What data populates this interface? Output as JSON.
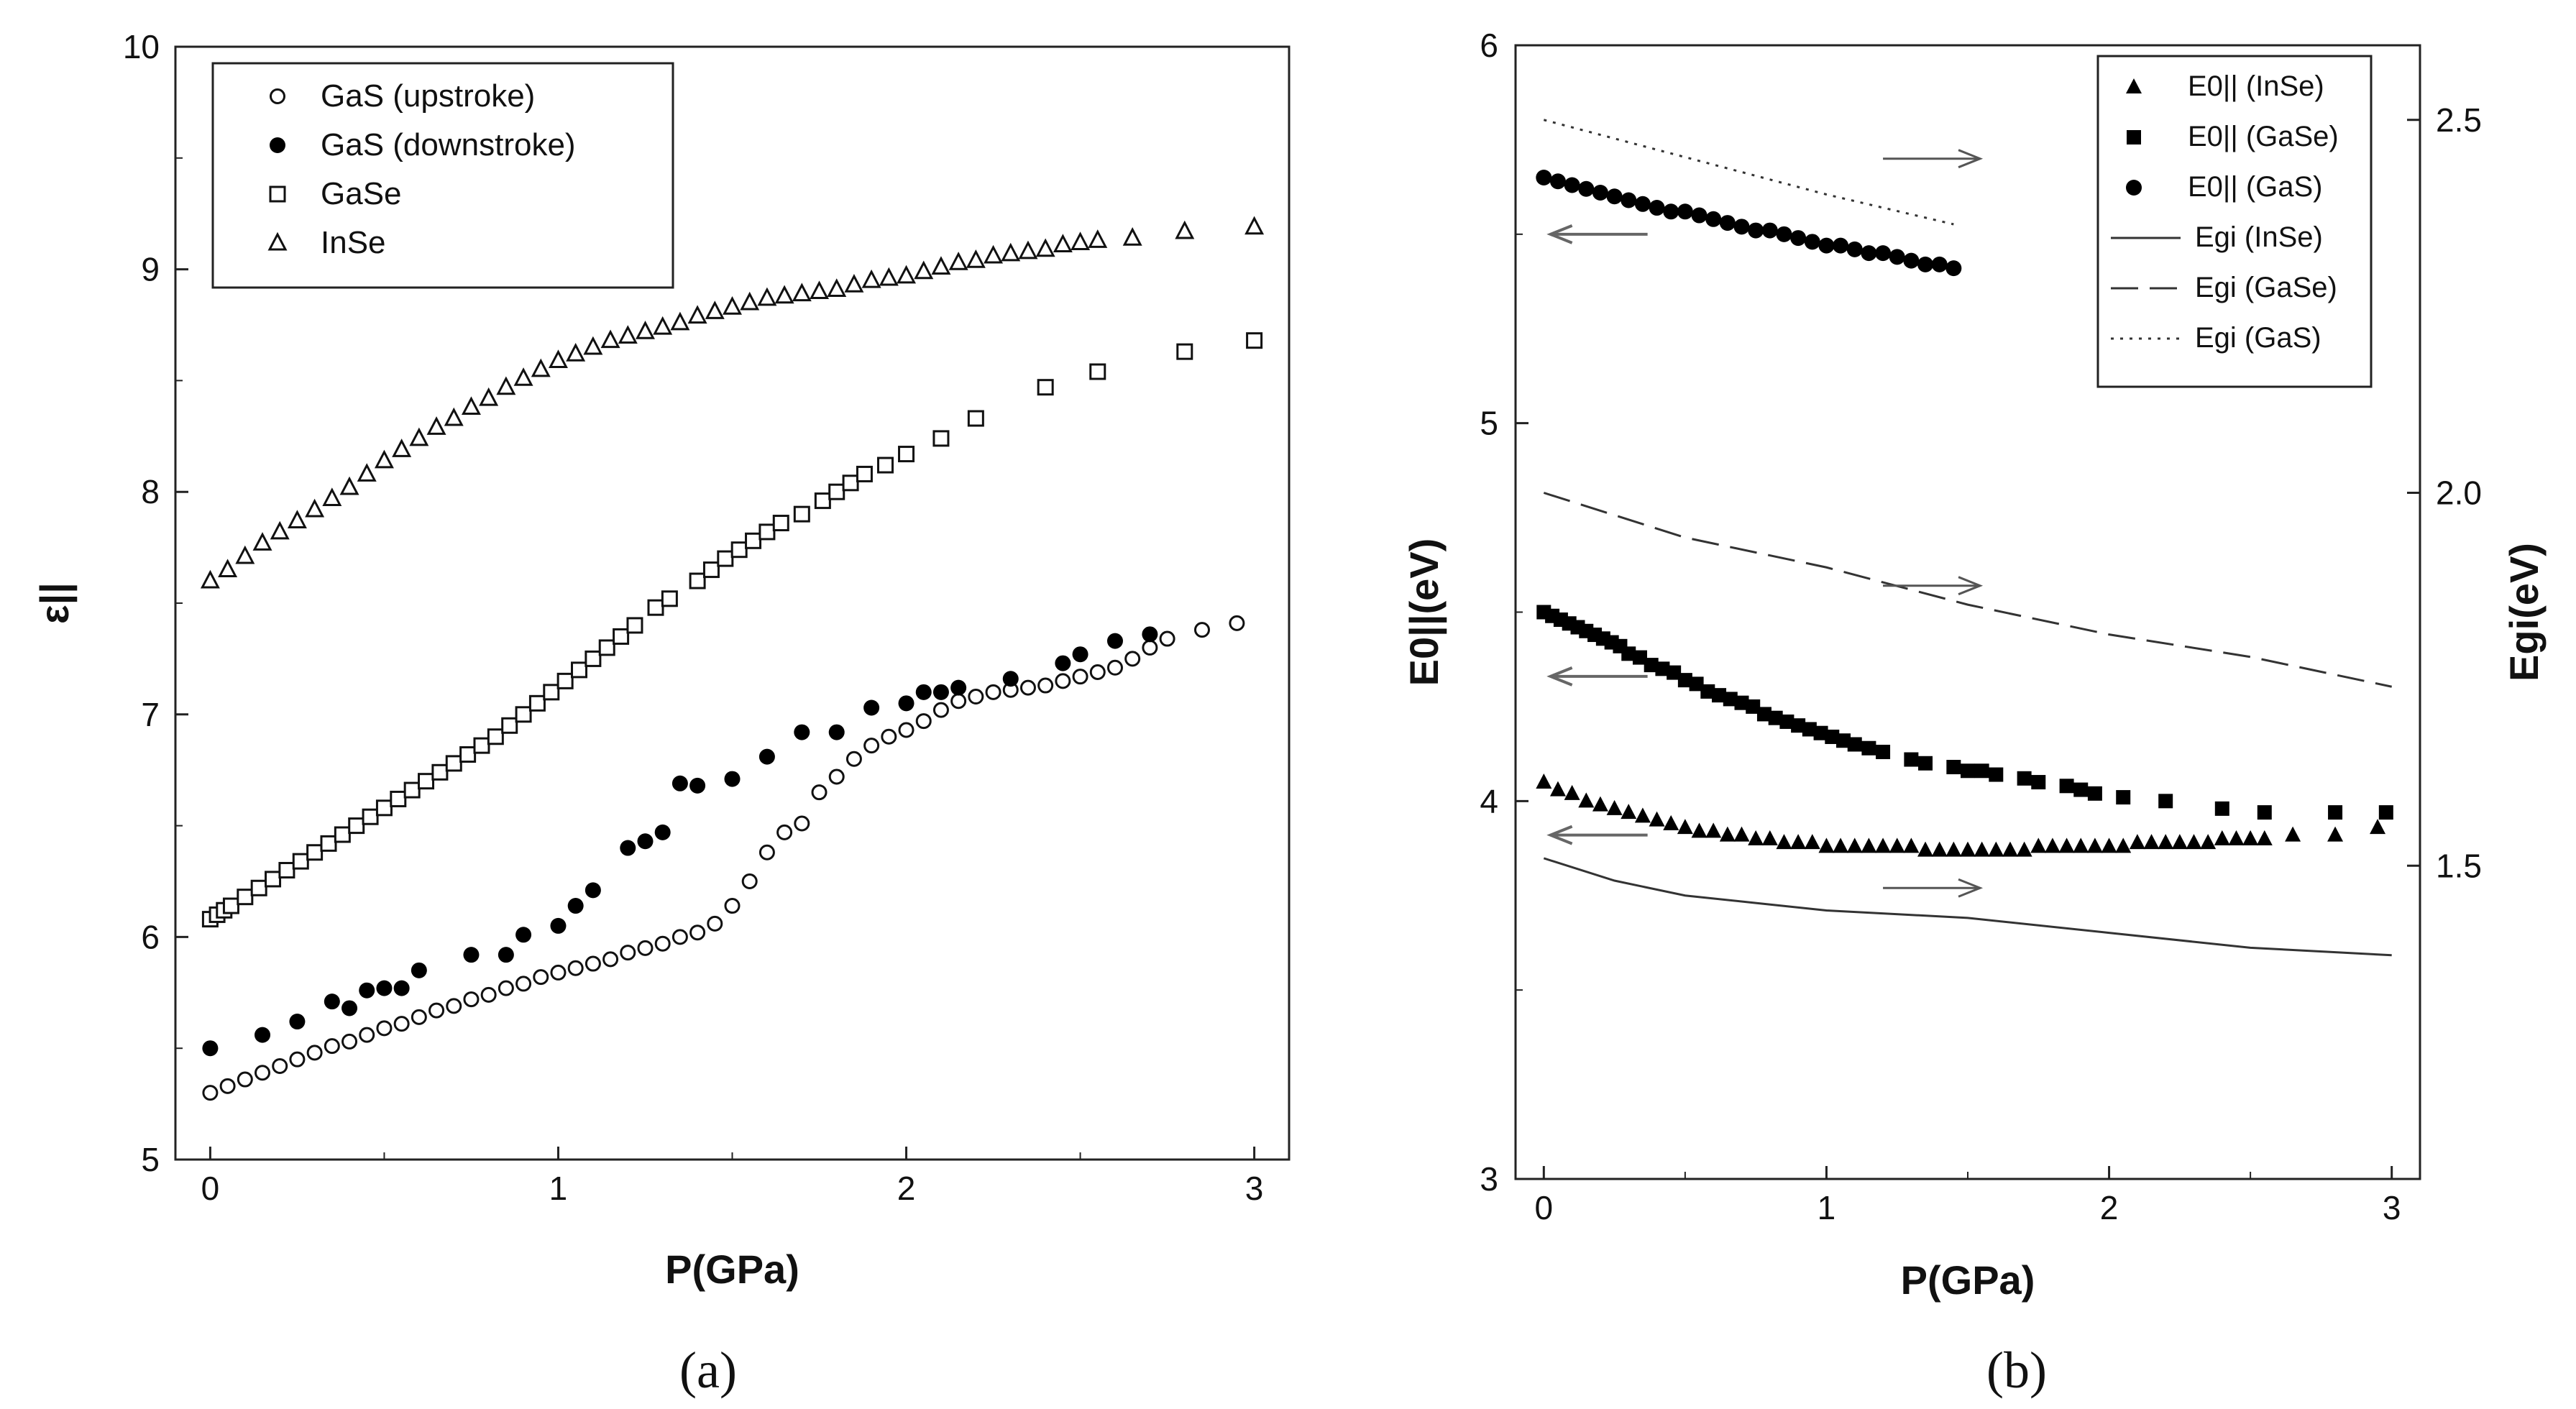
{
  "chart_data": [
    {
      "panel_label": "(a)",
      "type": "scatter",
      "xlabel": "P(GPa)",
      "ylabel": "ε||",
      "xlim": [
        -0.1,
        3.1
      ],
      "ylim": [
        5,
        10
      ],
      "xticks": [
        "0",
        "1",
        "2",
        "3"
      ],
      "yticks": [
        "5",
        "6",
        "7",
        "8",
        "9",
        "10"
      ],
      "legend_position": "top-left",
      "series": [
        {
          "name": "GaS (upstroke)",
          "marker": "open-circle",
          "x": [
            0,
            0.05,
            0.1,
            0.15,
            0.2,
            0.25,
            0.3,
            0.35,
            0.4,
            0.45,
            0.5,
            0.55,
            0.6,
            0.65,
            0.7,
            0.75,
            0.8,
            0.85,
            0.9,
            0.95,
            1.0,
            1.05,
            1.1,
            1.15,
            1.2,
            1.25,
            1.3,
            1.35,
            1.4,
            1.45,
            1.5,
            1.55,
            1.6,
            1.65,
            1.7,
            1.75,
            1.8,
            1.85,
            1.9,
            1.95,
            2.0,
            2.05,
            2.1,
            2.15,
            2.2,
            2.25,
            2.3,
            2.35,
            2.4,
            2.45,
            2.5,
            2.55,
            2.6,
            2.65,
            2.7,
            2.75,
            2.85,
            2.95
          ],
          "y": [
            5.3,
            5.33,
            5.36,
            5.39,
            5.42,
            5.45,
            5.48,
            5.51,
            5.53,
            5.56,
            5.59,
            5.61,
            5.64,
            5.67,
            5.69,
            5.72,
            5.74,
            5.77,
            5.79,
            5.82,
            5.84,
            5.86,
            5.88,
            5.9,
            5.93,
            5.95,
            5.97,
            6.0,
            6.02,
            6.06,
            6.14,
            6.25,
            6.38,
            6.47,
            6.51,
            6.65,
            6.72,
            6.8,
            6.86,
            6.9,
            6.93,
            6.97,
            7.02,
            7.06,
            7.08,
            7.1,
            7.11,
            7.12,
            7.13,
            7.15,
            7.17,
            7.19,
            7.21,
            7.25,
            7.3,
            7.34,
            7.38,
            7.41
          ]
        },
        {
          "name": "GaS (downstroke)",
          "marker": "filled-circle",
          "x": [
            0,
            0.15,
            0.25,
            0.35,
            0.4,
            0.45,
            0.5,
            0.55,
            0.6,
            0.75,
            0.85,
            0.9,
            1.0,
            1.05,
            1.1,
            1.2,
            1.25,
            1.3,
            1.35,
            1.4,
            1.5,
            1.6,
            1.7,
            1.8,
            1.9,
            2.0,
            2.05,
            2.1,
            2.15,
            2.3,
            2.45,
            2.5,
            2.6,
            2.7
          ],
          "y": [
            5.5,
            5.56,
            5.62,
            5.71,
            5.68,
            5.76,
            5.77,
            5.77,
            5.85,
            5.92,
            5.92,
            6.01,
            6.05,
            6.14,
            6.21,
            6.4,
            6.43,
            6.47,
            6.69,
            6.68,
            6.71,
            6.81,
            6.92,
            6.92,
            7.03,
            7.05,
            7.1,
            7.1,
            7.12,
            7.16,
            7.23,
            7.27,
            7.33,
            7.36
          ]
        },
        {
          "name": "GaSe",
          "marker": "open-square",
          "x": [
            0,
            0.02,
            0.04,
            0.06,
            0.1,
            0.14,
            0.18,
            0.22,
            0.26,
            0.3,
            0.34,
            0.38,
            0.42,
            0.46,
            0.5,
            0.54,
            0.58,
            0.62,
            0.66,
            0.7,
            0.74,
            0.78,
            0.82,
            0.86,
            0.9,
            0.94,
            0.98,
            1.02,
            1.06,
            1.1,
            1.14,
            1.18,
            1.22,
            1.28,
            1.32,
            1.4,
            1.44,
            1.48,
            1.52,
            1.56,
            1.6,
            1.64,
            1.7,
            1.76,
            1.8,
            1.84,
            1.88,
            1.94,
            2.0,
            2.1,
            2.2,
            2.4,
            2.55,
            2.8,
            3.0
          ],
          "y": [
            6.08,
            6.1,
            6.12,
            6.14,
            6.18,
            6.22,
            6.26,
            6.3,
            6.34,
            6.38,
            6.42,
            6.46,
            6.5,
            6.54,
            6.58,
            6.62,
            6.66,
            6.7,
            6.74,
            6.78,
            6.82,
            6.86,
            6.9,
            6.95,
            7.0,
            7.05,
            7.1,
            7.15,
            7.2,
            7.25,
            7.3,
            7.35,
            7.4,
            7.48,
            7.52,
            7.6,
            7.65,
            7.7,
            7.74,
            7.78,
            7.82,
            7.86,
            7.9,
            7.96,
            8.0,
            8.04,
            8.08,
            8.12,
            8.17,
            8.24,
            8.33,
            8.47,
            8.54,
            8.63,
            8.68
          ]
        },
        {
          "name": "InSe",
          "marker": "open-triangle",
          "x": [
            0,
            0.05,
            0.1,
            0.15,
            0.2,
            0.25,
            0.3,
            0.35,
            0.4,
            0.45,
            0.5,
            0.55,
            0.6,
            0.65,
            0.7,
            0.75,
            0.8,
            0.85,
            0.9,
            0.95,
            1.0,
            1.05,
            1.1,
            1.15,
            1.2,
            1.25,
            1.3,
            1.35,
            1.4,
            1.45,
            1.5,
            1.55,
            1.6,
            1.65,
            1.7,
            1.75,
            1.8,
            1.85,
            1.9,
            1.95,
            2.0,
            2.05,
            2.1,
            2.15,
            2.2,
            2.25,
            2.3,
            2.35,
            2.4,
            2.45,
            2.5,
            2.55,
            2.65,
            2.8,
            3.0
          ],
          "y": [
            7.6,
            7.65,
            7.71,
            7.77,
            7.82,
            7.87,
            7.92,
            7.97,
            8.02,
            8.08,
            8.14,
            8.19,
            8.24,
            8.29,
            8.33,
            8.38,
            8.42,
            8.47,
            8.51,
            8.55,
            8.59,
            8.62,
            8.65,
            8.68,
            8.7,
            8.72,
            8.74,
            8.76,
            8.79,
            8.81,
            8.83,
            8.85,
            8.87,
            8.88,
            8.89,
            8.9,
            8.91,
            8.93,
            8.95,
            8.96,
            8.97,
            8.99,
            9.01,
            9.03,
            9.04,
            9.06,
            9.07,
            9.08,
            9.09,
            9.11,
            9.12,
            9.13,
            9.14,
            9.17,
            9.19
          ]
        }
      ]
    },
    {
      "panel_label": "(b)",
      "type": "scatter+line",
      "xlabel": "P(GPa)",
      "ylabel_left": "E0||(eV)",
      "ylabel_right": "Egi(eV)",
      "xlim": [
        -0.1,
        3.1
      ],
      "ylim_left": [
        3,
        6
      ],
      "ylim_right": [
        1.08,
        2.6
      ],
      "xticks": [
        "0",
        "1",
        "2",
        "3"
      ],
      "yticks_left": [
        "3",
        "4",
        "5",
        "6"
      ],
      "yticks_right": [
        "1.5",
        "2.0",
        "2.5"
      ],
      "legend_position": "top-right",
      "scatter_series": [
        {
          "name": "E0|| (InSe)",
          "axis": "left",
          "marker": "filled-triangle",
          "x": [
            0,
            0.05,
            0.1,
            0.15,
            0.2,
            0.25,
            0.3,
            0.35,
            0.4,
            0.45,
            0.5,
            0.55,
            0.6,
            0.65,
            0.7,
            0.75,
            0.8,
            0.85,
            0.9,
            0.95,
            1.0,
            1.05,
            1.1,
            1.15,
            1.2,
            1.25,
            1.3,
            1.35,
            1.4,
            1.45,
            1.5,
            1.55,
            1.6,
            1.65,
            1.7,
            1.75,
            1.8,
            1.85,
            1.9,
            1.95,
            2.0,
            2.05,
            2.1,
            2.15,
            2.2,
            2.25,
            2.3,
            2.35,
            2.4,
            2.45,
            2.5,
            2.55,
            2.65,
            2.8,
            2.95
          ],
          "y": [
            4.05,
            4.03,
            4.02,
            4.0,
            3.99,
            3.98,
            3.97,
            3.96,
            3.95,
            3.94,
            3.93,
            3.92,
            3.92,
            3.91,
            3.91,
            3.9,
            3.9,
            3.89,
            3.89,
            3.89,
            3.88,
            3.88,
            3.88,
            3.88,
            3.88,
            3.88,
            3.88,
            3.87,
            3.87,
            3.87,
            3.87,
            3.87,
            3.87,
            3.87,
            3.87,
            3.88,
            3.88,
            3.88,
            3.88,
            3.88,
            3.88,
            3.88,
            3.89,
            3.89,
            3.89,
            3.89,
            3.89,
            3.89,
            3.9,
            3.9,
            3.9,
            3.9,
            3.91,
            3.91,
            3.93
          ]
        },
        {
          "name": "E0|| (GaSe)",
          "axis": "left",
          "marker": "filled-square",
          "x": [
            0,
            0.03,
            0.06,
            0.09,
            0.12,
            0.15,
            0.18,
            0.21,
            0.24,
            0.27,
            0.3,
            0.34,
            0.38,
            0.42,
            0.46,
            0.5,
            0.54,
            0.58,
            0.62,
            0.66,
            0.7,
            0.74,
            0.78,
            0.82,
            0.86,
            0.9,
            0.94,
            0.98,
            1.02,
            1.06,
            1.1,
            1.15,
            1.2,
            1.3,
            1.35,
            1.45,
            1.5,
            1.55,
            1.6,
            1.7,
            1.75,
            1.85,
            1.9,
            1.95,
            2.05,
            2.2,
            2.4,
            2.55,
            2.8,
            2.98
          ],
          "y": [
            4.5,
            4.49,
            4.48,
            4.47,
            4.46,
            4.45,
            4.44,
            4.43,
            4.42,
            4.41,
            4.39,
            4.38,
            4.36,
            4.35,
            4.34,
            4.32,
            4.31,
            4.29,
            4.28,
            4.27,
            4.26,
            4.25,
            4.23,
            4.22,
            4.21,
            4.2,
            4.19,
            4.18,
            4.17,
            4.16,
            4.15,
            4.14,
            4.13,
            4.11,
            4.1,
            4.09,
            4.08,
            4.08,
            4.07,
            4.06,
            4.05,
            4.04,
            4.03,
            4.02,
            4.01,
            4.0,
            3.98,
            3.97,
            3.97,
            3.97
          ]
        },
        {
          "name": "E0|| (GaS)",
          "axis": "left",
          "marker": "filled-circle",
          "x": [
            0,
            0.05,
            0.1,
            0.15,
            0.2,
            0.25,
            0.3,
            0.35,
            0.4,
            0.45,
            0.5,
            0.55,
            0.6,
            0.65,
            0.7,
            0.75,
            0.8,
            0.85,
            0.9,
            0.95,
            1.0,
            1.05,
            1.1,
            1.15,
            1.2,
            1.25,
            1.3,
            1.35,
            1.4,
            1.45
          ],
          "y": [
            5.65,
            5.64,
            5.63,
            5.62,
            5.61,
            5.6,
            5.59,
            5.58,
            5.57,
            5.56,
            5.56,
            5.55,
            5.54,
            5.53,
            5.52,
            5.51,
            5.51,
            5.5,
            5.49,
            5.48,
            5.47,
            5.47,
            5.46,
            5.45,
            5.45,
            5.44,
            5.43,
            5.42,
            5.42,
            5.41
          ]
        }
      ],
      "line_series": [
        {
          "name": "Egi (InSe)",
          "axis": "right",
          "style": "solid",
          "x": [
            0,
            0.25,
            0.5,
            0.75,
            1.0,
            1.5,
            2.0,
            2.5,
            3.0
          ],
          "y": [
            1.51,
            1.48,
            1.46,
            1.45,
            1.44,
            1.43,
            1.41,
            1.39,
            1.38
          ]
        },
        {
          "name": "Egi (GaSe)",
          "axis": "right",
          "style": "dashed",
          "x": [
            0,
            0.25,
            0.5,
            0.75,
            1.0,
            1.5,
            2.0,
            2.5,
            3.0
          ],
          "y": [
            2.0,
            1.97,
            1.94,
            1.92,
            1.9,
            1.85,
            1.81,
            1.78,
            1.74
          ]
        },
        {
          "name": "Egi (GaS)",
          "axis": "right",
          "style": "dotted",
          "x": [
            0,
            0.5,
            1.0,
            1.45
          ],
          "y": [
            2.5,
            2.45,
            2.4,
            2.36
          ]
        }
      ],
      "arrows": [
        {
          "points_to": "right",
          "x": 1.2,
          "y_left": 5.7
        },
        {
          "points_to": "left",
          "x": 0.1,
          "y_left": 5.5
        },
        {
          "points_to": "right",
          "x": 1.2,
          "y_left": 4.57
        },
        {
          "points_to": "left",
          "x": 0.1,
          "y_left": 4.33
        },
        {
          "points_to": "right",
          "x": 1.2,
          "y_left": 3.77
        },
        {
          "points_to": "left",
          "x": 0.1,
          "y_left": 3.91
        }
      ]
    }
  ]
}
